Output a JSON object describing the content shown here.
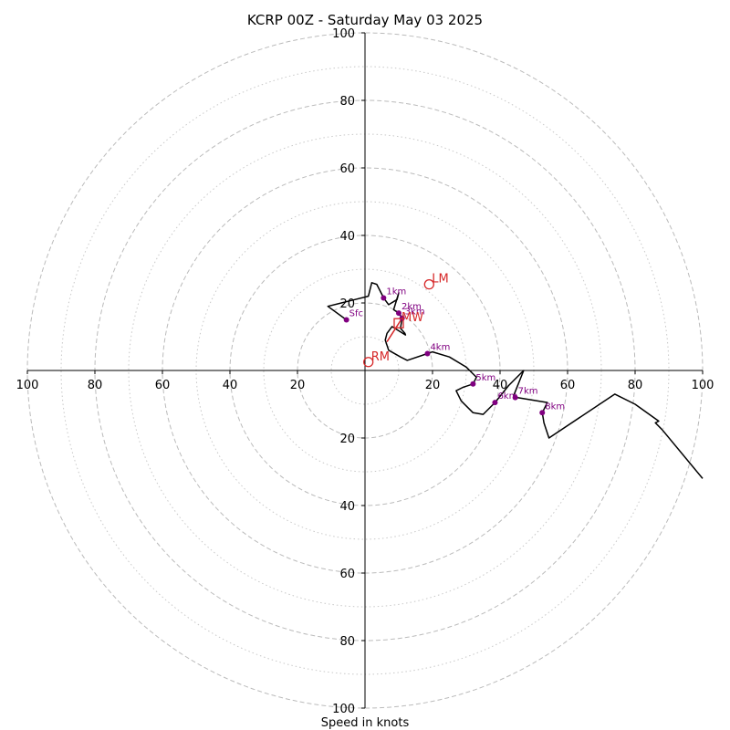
{
  "chart_data": {
    "type": "line",
    "title": "KCRP 00Z - Saturday May 03 2025",
    "xlabel": "Speed in knots",
    "ylabel": "",
    "xlim": [
      -100,
      100
    ],
    "ylim": [
      -100,
      100
    ],
    "ring_major": [
      20,
      40,
      60,
      80,
      100
    ],
    "ring_minor": [
      10,
      30,
      50,
      70,
      90
    ],
    "ticks": {
      "x": [
        {
          "value": -100,
          "label": "100"
        },
        {
          "value": -80,
          "label": "80"
        },
        {
          "value": -60,
          "label": "60"
        },
        {
          "value": -40,
          "label": "40"
        },
        {
          "value": -20,
          "label": "20"
        },
        {
          "value": 20,
          "label": "20"
        },
        {
          "value": 40,
          "label": "40"
        },
        {
          "value": 60,
          "label": "60"
        },
        {
          "value": 80,
          "label": "80"
        },
        {
          "value": 100,
          "label": "100"
        }
      ],
      "y": [
        {
          "value": 100,
          "label": "100"
        },
        {
          "value": 80,
          "label": "80"
        },
        {
          "value": 60,
          "label": "60"
        },
        {
          "value": 40,
          "label": "40"
        },
        {
          "value": 20,
          "label": "20"
        },
        {
          "value": -20,
          "label": "20"
        },
        {
          "value": -40,
          "label": "40"
        },
        {
          "value": -60,
          "label": "60"
        },
        {
          "value": -80,
          "label": "80"
        },
        {
          "value": -100,
          "label": "100"
        }
      ]
    },
    "hodograph": {
      "color": "#000000",
      "points": [
        [
          -5.5,
          15
        ],
        [
          -11,
          19
        ],
        [
          -7,
          20
        ],
        [
          -3,
          21
        ],
        [
          1,
          22
        ],
        [
          2,
          26
        ],
        [
          3.5,
          25.5
        ],
        [
          5.5,
          21.5
        ],
        [
          7,
          19.5
        ],
        [
          9.5,
          21
        ],
        [
          10,
          23
        ],
        [
          8.5,
          18
        ],
        [
          10,
          17
        ],
        [
          11,
          15.5
        ],
        [
          10.5,
          12.5
        ],
        [
          11.8,
          11
        ],
        [
          12,
          10.5
        ],
        [
          8,
          13
        ],
        [
          6.5,
          11
        ],
        [
          6,
          9
        ],
        [
          7,
          6
        ],
        [
          10.5,
          4
        ],
        [
          12.5,
          3
        ],
        [
          18.5,
          5
        ],
        [
          20,
          5.5
        ],
        [
          25,
          4
        ],
        [
          30,
          1
        ],
        [
          33,
          -2
        ],
        [
          32,
          -4
        ],
        [
          29,
          -5
        ],
        [
          27,
          -6
        ],
        [
          28.5,
          -9
        ],
        [
          32,
          -12.5
        ],
        [
          35,
          -13
        ],
        [
          38.5,
          -9.5
        ],
        [
          42.5,
          -4.5
        ],
        [
          47,
          0
        ],
        [
          44,
          -7.5
        ],
        [
          45,
          -8
        ],
        [
          54,
          -9.5
        ],
        [
          52.5,
          -12.5
        ],
        [
          53,
          -15.5
        ],
        [
          54.5,
          -20
        ],
        [
          74,
          -7
        ],
        [
          80,
          -10
        ],
        [
          87,
          -15
        ],
        [
          86,
          -15.5
        ],
        [
          88,
          -17.5
        ],
        [
          100,
          -32
        ]
      ]
    },
    "height_markers": {
      "color": "#800080",
      "points": [
        {
          "label": "Sfc",
          "x": -5.5,
          "y": 15
        },
        {
          "label": "1km",
          "x": 5.5,
          "y": 21.5
        },
        {
          "label": "2km",
          "x": 10,
          "y": 17
        },
        {
          "label": "3km",
          "x": 11,
          "y": 15.5
        },
        {
          "label": "4km",
          "x": 18.5,
          "y": 5
        },
        {
          "label": "5km",
          "x": 32,
          "y": -4
        },
        {
          "label": "6km",
          "x": 38.5,
          "y": -9.5
        },
        {
          "label": "7km",
          "x": 44.5,
          "y": -8
        },
        {
          "label": "8km",
          "x": 52.5,
          "y": -12.5
        }
      ]
    },
    "storm_motions": {
      "color": "#d62728",
      "points": [
        {
          "label": "LM",
          "x": 19,
          "y": 25.5
        },
        {
          "label": "RM",
          "x": 1,
          "y": 2.5
        },
        {
          "label": "MW",
          "x": 10,
          "y": 14
        }
      ]
    },
    "shear_vector": {
      "color": "#d62728",
      "from": [
        6.5,
        8.5
      ],
      "to": [
        11,
        15.5
      ]
    }
  }
}
